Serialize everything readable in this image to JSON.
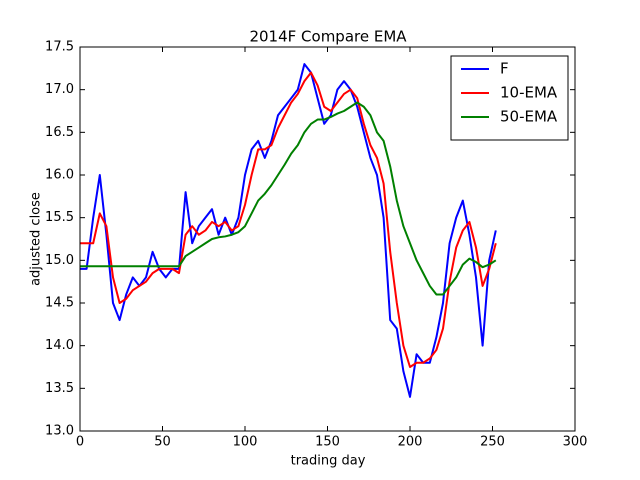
{
  "chart_data": {
    "type": "line",
    "title": "2014F Compare EMA",
    "x_label": "trading day",
    "y_label": "adjusted close",
    "x": [
      0,
      4,
      8,
      12,
      16,
      20,
      24,
      28,
      32,
      36,
      40,
      44,
      48,
      52,
      56,
      60,
      64,
      68,
      72,
      76,
      80,
      84,
      88,
      92,
      96,
      100,
      104,
      108,
      112,
      116,
      120,
      124,
      128,
      132,
      136,
      140,
      144,
      148,
      152,
      156,
      160,
      164,
      168,
      172,
      176,
      180,
      184,
      188,
      192,
      196,
      200,
      204,
      208,
      212,
      216,
      220,
      224,
      228,
      232,
      236,
      240,
      244,
      248,
      252
    ],
    "series": [
      {
        "name": "F",
        "color": "#0000ff",
        "values": [
          14.9,
          14.9,
          15.5,
          16.0,
          15.3,
          14.5,
          14.3,
          14.6,
          14.8,
          14.7,
          14.8,
          15.1,
          14.9,
          14.8,
          14.9,
          14.9,
          15.8,
          15.2,
          15.4,
          15.5,
          15.6,
          15.3,
          15.5,
          15.3,
          15.5,
          16.0,
          16.3,
          16.4,
          16.2,
          16.4,
          16.7,
          16.8,
          16.9,
          17.0,
          17.3,
          17.2,
          16.9,
          16.6,
          16.7,
          17.0,
          17.1,
          17.0,
          16.8,
          16.5,
          16.2,
          16.0,
          15.5,
          14.3,
          14.2,
          13.7,
          13.4,
          13.9,
          13.8,
          13.8,
          14.1,
          14.5,
          15.2,
          15.5,
          15.7,
          15.3,
          14.8,
          14.0,
          15.0,
          15.35
        ]
      },
      {
        "name": "10-EMA",
        "color": "#ff0000",
        "values": [
          15.2,
          15.2,
          15.2,
          15.55,
          15.4,
          14.8,
          14.5,
          14.55,
          14.65,
          14.7,
          14.75,
          14.85,
          14.9,
          14.9,
          14.9,
          14.85,
          15.3,
          15.4,
          15.3,
          15.35,
          15.45,
          15.4,
          15.45,
          15.35,
          15.4,
          15.65,
          16.0,
          16.3,
          16.3,
          16.35,
          16.55,
          16.7,
          16.85,
          16.95,
          17.1,
          17.2,
          17.05,
          16.8,
          16.75,
          16.85,
          16.95,
          17.0,
          16.9,
          16.6,
          16.35,
          16.2,
          15.9,
          15.1,
          14.5,
          14.0,
          13.75,
          13.8,
          13.8,
          13.85,
          13.95,
          14.2,
          14.75,
          15.15,
          15.35,
          15.45,
          15.15,
          14.7,
          14.9,
          15.2
        ]
      },
      {
        "name": "50-EMA",
        "color": "#008000",
        "values": [
          14.93,
          14.93,
          14.93,
          14.93,
          14.93,
          14.93,
          14.93,
          14.93,
          14.93,
          14.93,
          14.93,
          14.93,
          14.93,
          14.93,
          14.93,
          14.93,
          15.05,
          15.1,
          15.15,
          15.2,
          15.25,
          15.27,
          15.28,
          15.3,
          15.33,
          15.4,
          15.55,
          15.7,
          15.78,
          15.88,
          16.0,
          16.12,
          16.25,
          16.35,
          16.5,
          16.6,
          16.65,
          16.65,
          16.68,
          16.72,
          16.75,
          16.8,
          16.85,
          16.8,
          16.7,
          16.5,
          16.4,
          16.1,
          15.7,
          15.4,
          15.2,
          15.0,
          14.85,
          14.7,
          14.6,
          14.6,
          14.7,
          14.8,
          14.95,
          15.02,
          14.98,
          14.92,
          14.95,
          15.0
        ]
      }
    ],
    "xlim": [
      0,
      300
    ],
    "xticks": [
      0,
      50,
      100,
      150,
      200,
      250,
      300
    ],
    "ylim": [
      13.0,
      17.5
    ],
    "yticks": [
      {
        "value": 13.0,
        "label": "13.0"
      },
      {
        "value": 13.5,
        "label": "13.5"
      },
      {
        "value": 14.0,
        "label": "14.0"
      },
      {
        "value": 14.5,
        "label": "14.5"
      },
      {
        "value": 15.0,
        "label": "15.0"
      },
      {
        "value": 15.5,
        "label": "15.5"
      },
      {
        "value": 16.0,
        "label": "16.0"
      },
      {
        "value": 16.5,
        "label": "16.5"
      },
      {
        "value": 17.0,
        "label": "17.0"
      },
      {
        "value": 17.5,
        "label": "17.5"
      }
    ],
    "grid": false,
    "legend": "upper right"
  }
}
